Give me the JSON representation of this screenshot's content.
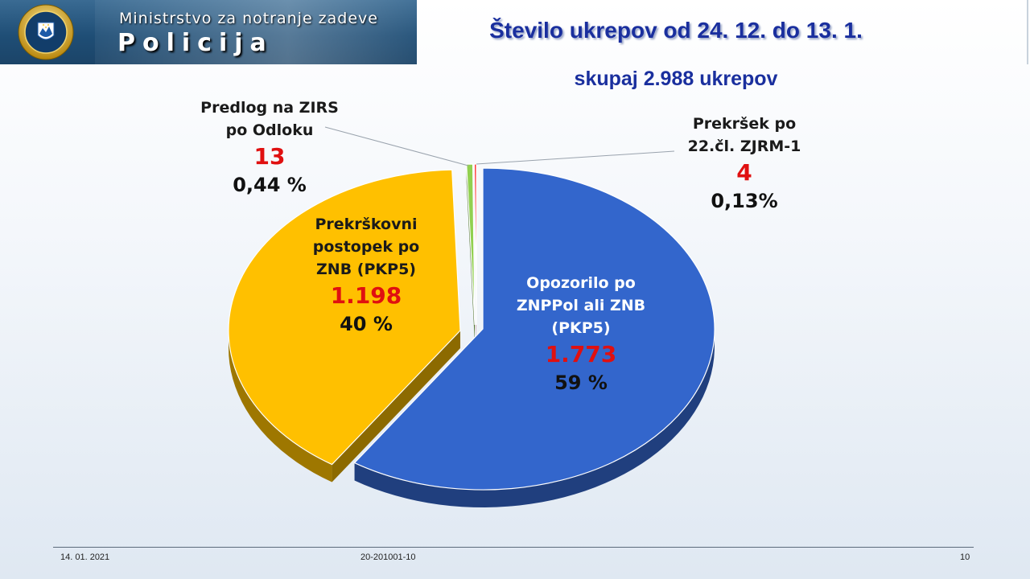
{
  "header": {
    "ministry": "Ministrstvo za notranje zadeve",
    "brand": "Policija"
  },
  "title": "Število ukrepov od 24. 12. do 13. 1.",
  "subtitle": "skupaj 2.988 ukrepov",
  "chart_data": {
    "type": "pie",
    "title": "Število ukrepov od 24. 12. do 13. 1.",
    "subtitle": "skupaj 2.988 ukrepov",
    "total": 2988,
    "slices": [
      {
        "label_lines": [
          "Opozorilo po",
          "ZNPPol ali ZNB",
          "(PKP5)"
        ],
        "value": 1773,
        "value_text": "1.773",
        "percent_text": "59 %",
        "color": "#3366cc"
      },
      {
        "label_lines": [
          "Prekrškovni",
          "postopek po",
          "ZNB (PKP5)"
        ],
        "value": 1198,
        "value_text": "1.198",
        "percent_text": "40 %",
        "color": "#ffc000"
      },
      {
        "label_lines": [
          "Predlog na ZIRS",
          "po Odloku"
        ],
        "value": 13,
        "value_text": "13",
        "percent_text": "0,44 %",
        "color": "#92d050"
      },
      {
        "label_lines": [
          "Prekršek po",
          "22.čl. ZJRM-1"
        ],
        "value": 4,
        "value_text": "4",
        "percent_text": "0,13%",
        "color": "#ff0000"
      }
    ],
    "colors": {
      "value_text": "#e01010",
      "label_text": "#ffffff",
      "percent_text": "#111111"
    }
  },
  "footer": {
    "date": "14. 01. 2021",
    "code": "20-201001-10",
    "page": "10"
  }
}
